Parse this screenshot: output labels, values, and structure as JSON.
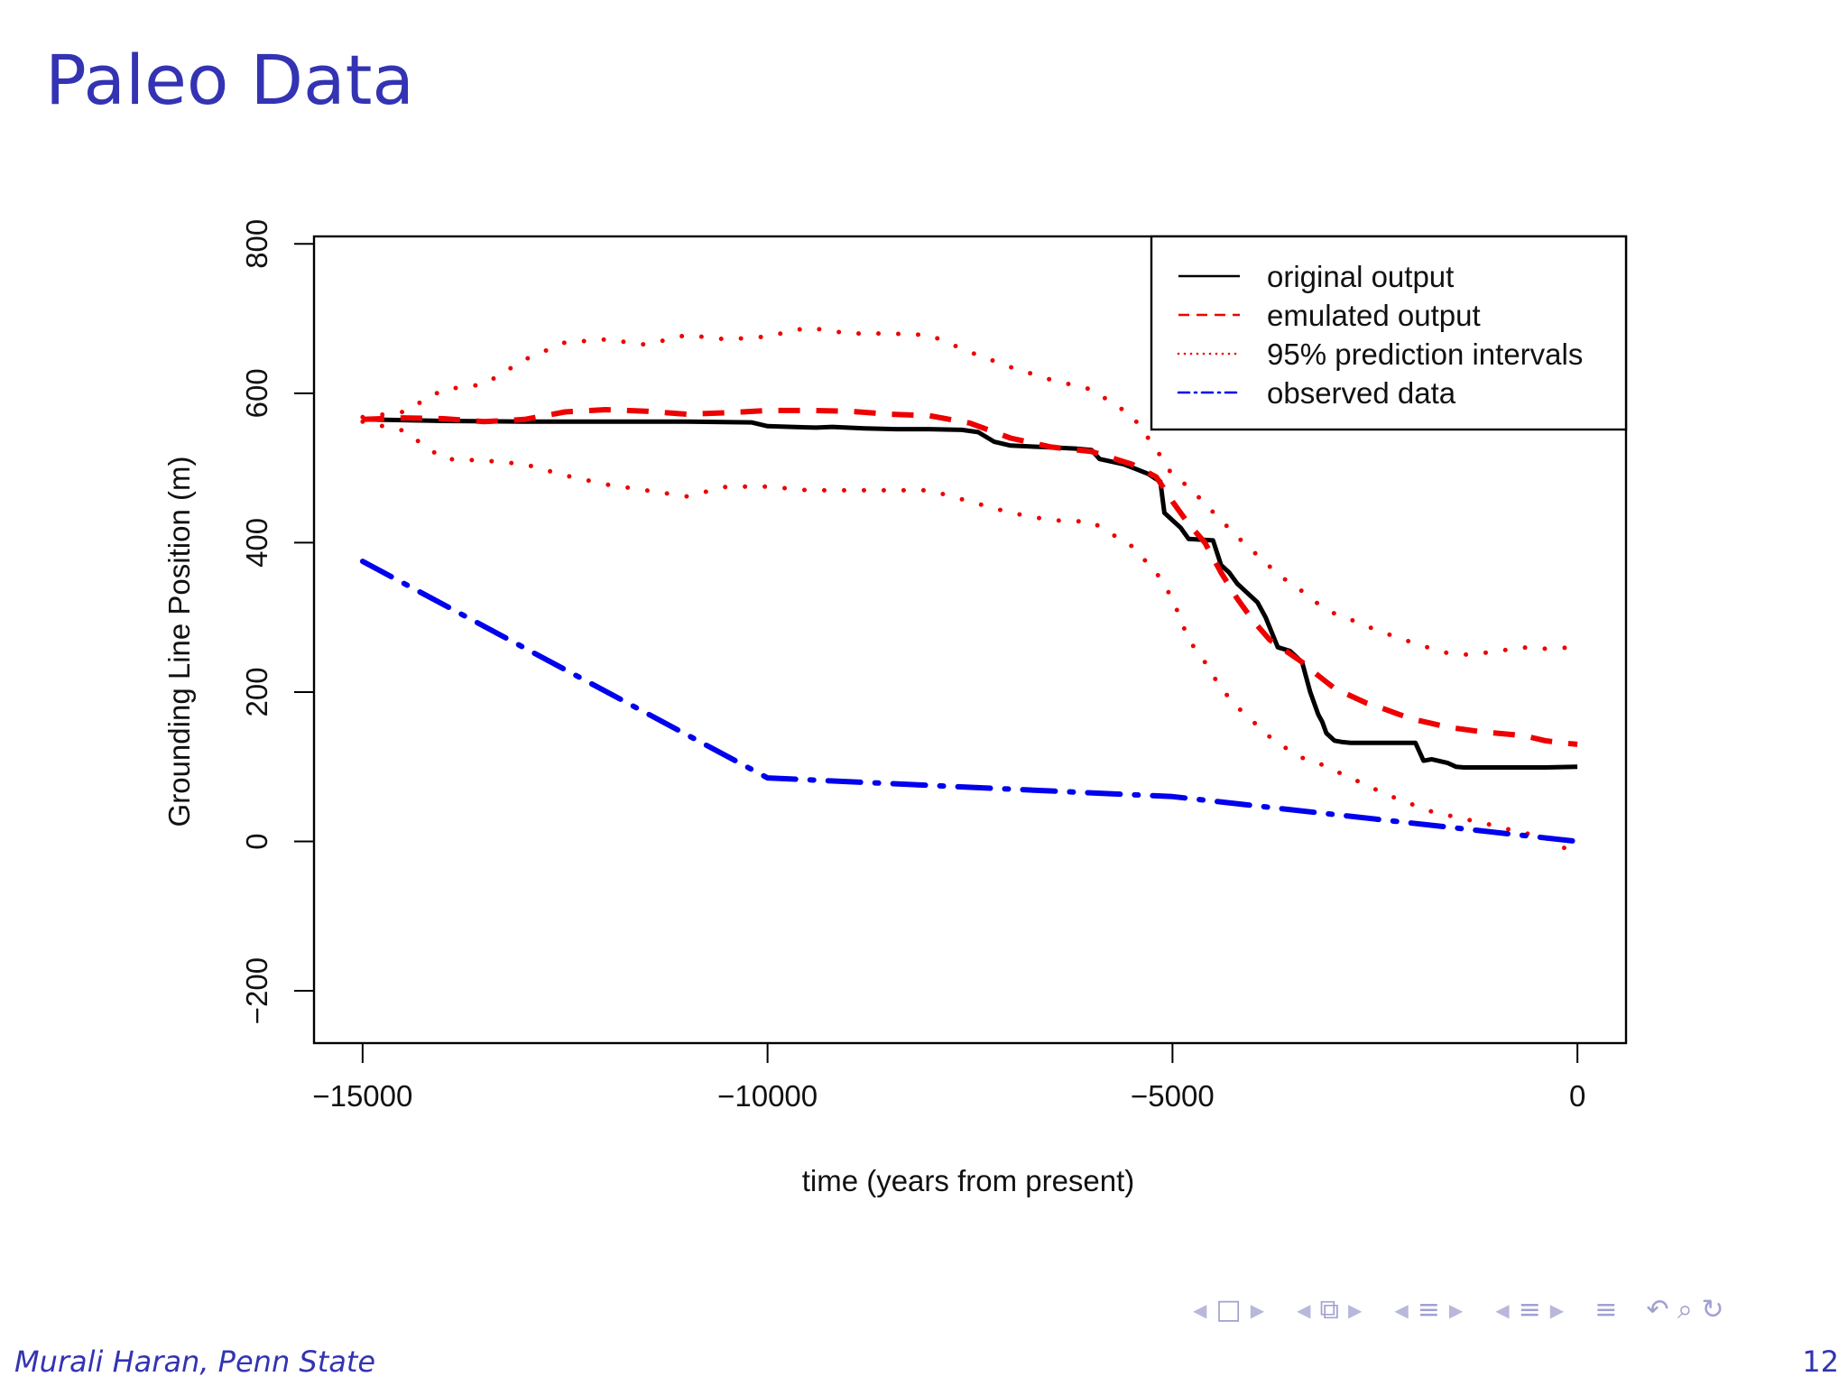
{
  "slide": {
    "title": "Paleo Data",
    "author": "Murali Haran, Penn State",
    "page_number": "12"
  },
  "nav": {
    "icons": [
      "frame-icon",
      "section-icon",
      "subsection-icon",
      "subsubsection-icon",
      "align-icon",
      "search-icon"
    ],
    "symbols": [
      "□",
      "⧉",
      "≡",
      "≡",
      "≡",
      "↶ ⌕ ↻"
    ]
  },
  "colors": {
    "title": "#3333b3",
    "original": "#000000",
    "emulated": "#ee0000",
    "interval": "#ee0000",
    "observed": "#0000ee"
  },
  "chart_data": {
    "type": "line",
    "title": "",
    "xlabel": "time (years from present)",
    "ylabel": "Grounding Line Position (m)",
    "xlim": [
      -15600,
      600
    ],
    "ylim": [
      -270,
      810
    ],
    "xticks": [
      -15000,
      -10000,
      -5000,
      0
    ],
    "xtick_labels": [
      "−15000",
      "−10000",
      "−5000",
      "0"
    ],
    "yticks": [
      -200,
      0,
      200,
      400,
      600,
      800
    ],
    "ytick_labels": [
      "−200",
      "0",
      "200",
      "400",
      "600",
      "800"
    ],
    "grid": false,
    "legend": {
      "placement": "top-right",
      "entries": [
        {
          "label": "original output",
          "series": "original"
        },
        {
          "label": "emulated output",
          "series": "emulated"
        },
        {
          "label": "95% prediction intervals",
          "series": "upper"
        },
        {
          "label": "observed data",
          "series": "observed"
        }
      ]
    },
    "series": [
      {
        "id": "original",
        "name": "original output",
        "style": "solid",
        "x": [
          -15000,
          -14500,
          -14000,
          -13000,
          -12000,
          -11000,
          -10200,
          -10000,
          -9700,
          -9400,
          -9200,
          -8800,
          -8400,
          -8000,
          -7600,
          -7400,
          -7200,
          -7000,
          -6600,
          -6200,
          -6000,
          -5900,
          -5600,
          -5300,
          -5200,
          -5150,
          -5100,
          -5000,
          -4900,
          -4800,
          -4500,
          -4400,
          -4300,
          -4200,
          -4100,
          -3950,
          -3850,
          -3700,
          -3550,
          -3400,
          -3300,
          -3200,
          -3150,
          -3100,
          -3000,
          -2900,
          -2800,
          -2600,
          -2200,
          -2000,
          -1900,
          -1800,
          -1600,
          -1500,
          -1400,
          -1200,
          -800,
          -400,
          0
        ],
        "y": [
          565,
          564,
          563,
          562,
          562,
          562,
          561,
          556,
          555,
          554,
          555,
          553,
          552,
          552,
          551,
          548,
          535,
          530,
          528,
          526,
          524,
          512,
          505,
          492,
          485,
          482,
          440,
          430,
          420,
          405,
          403,
          370,
          360,
          345,
          335,
          320,
          300,
          260,
          255,
          240,
          200,
          170,
          160,
          145,
          135,
          133,
          132,
          132,
          132,
          132,
          108,
          110,
          105,
          100,
          99,
          99,
          99,
          99,
          100
        ]
      },
      {
        "id": "emulated",
        "name": "emulated output",
        "style": "dashed",
        "x": [
          -15000,
          -14500,
          -14000,
          -13500,
          -13000,
          -12500,
          -12000,
          -11500,
          -11000,
          -10500,
          -10000,
          -9500,
          -9000,
          -8500,
          -8000,
          -7500,
          -7000,
          -6500,
          -6000,
          -5500,
          -5200,
          -5000,
          -4800,
          -4600,
          -4400,
          -4200,
          -4000,
          -3800,
          -3600,
          -3400,
          -3200,
          -3000,
          -2800,
          -2600,
          -2400,
          -2200,
          -2000,
          -1800,
          -1600,
          -1400,
          -1200,
          -1000,
          -800,
          -600,
          -400,
          -200,
          0
        ],
        "y": [
          565,
          567,
          566,
          562,
          565,
          575,
          578,
          576,
          572,
          574,
          577,
          577,
          576,
          572,
          570,
          560,
          540,
          528,
          522,
          505,
          488,
          455,
          425,
          400,
          360,
          325,
          295,
          270,
          255,
          240,
          222,
          205,
          195,
          185,
          178,
          170,
          163,
          158,
          153,
          150,
          147,
          145,
          143,
          140,
          135,
          132,
          130
        ]
      },
      {
        "id": "upper",
        "name": "95% prediction intervals",
        "style": "dotted",
        "x": [
          -15000,
          -14500,
          -14000,
          -13500,
          -13000,
          -12500,
          -12000,
          -11500,
          -11000,
          -10500,
          -10000,
          -9500,
          -9000,
          -8500,
          -8000,
          -7500,
          -7000,
          -6500,
          -6000,
          -5500,
          -5200,
          -5000,
          -4800,
          -4600,
          -4400,
          -4200,
          -4000,
          -3800,
          -3600,
          -3400,
          -3200,
          -3000,
          -2800,
          -2600,
          -2400,
          -2200,
          -2000,
          -1800,
          -1600,
          -1400,
          -1200,
          -1000,
          -800,
          -600,
          -400,
          -200,
          0
        ],
        "y": [
          568,
          575,
          605,
          612,
          645,
          668,
          672,
          665,
          678,
          672,
          676,
          688,
          680,
          680,
          678,
          655,
          635,
          618,
          605,
          570,
          525,
          490,
          475,
          452,
          430,
          408,
          388,
          368,
          350,
          335,
          318,
          305,
          297,
          288,
          280,
          272,
          265,
          258,
          252,
          250,
          252,
          254,
          258,
          260,
          258,
          259,
          260
        ]
      },
      {
        "id": "lower",
        "name": "95% prediction intervals",
        "style": "dotted",
        "x": [
          -15000,
          -14500,
          -14000,
          -13500,
          -13000,
          -12500,
          -12000,
          -11500,
          -11000,
          -10500,
          -10000,
          -9500,
          -9000,
          -8500,
          -8000,
          -7500,
          -7000,
          -6500,
          -6000,
          -5500,
          -5200,
          -5000,
          -4800,
          -4600,
          -4400,
          -4200,
          -4000,
          -3800,
          -3600,
          -3400,
          -3200,
          -3000,
          -2800,
          -2600,
          -2400,
          -2200,
          -2000,
          -1800,
          -1600,
          -1400,
          -1200,
          -1000,
          -800,
          -600,
          -400,
          -200,
          0
        ],
        "y": [
          562,
          550,
          512,
          510,
          505,
          490,
          478,
          470,
          462,
          475,
          475,
          470,
          470,
          470,
          470,
          455,
          440,
          430,
          428,
          395,
          360,
          325,
          270,
          240,
          205,
          180,
          160,
          140,
          125,
          112,
          105,
          95,
          85,
          75,
          65,
          56,
          48,
          40,
          35,
          30,
          26,
          20,
          15,
          10,
          5,
          -5,
          -25
        ]
      },
      {
        "id": "observed",
        "name": "observed data",
        "style": "dotdash",
        "x": [
          -15000,
          -10000,
          -5000,
          0
        ],
        "y": [
          375,
          85,
          60,
          0
        ]
      }
    ]
  }
}
